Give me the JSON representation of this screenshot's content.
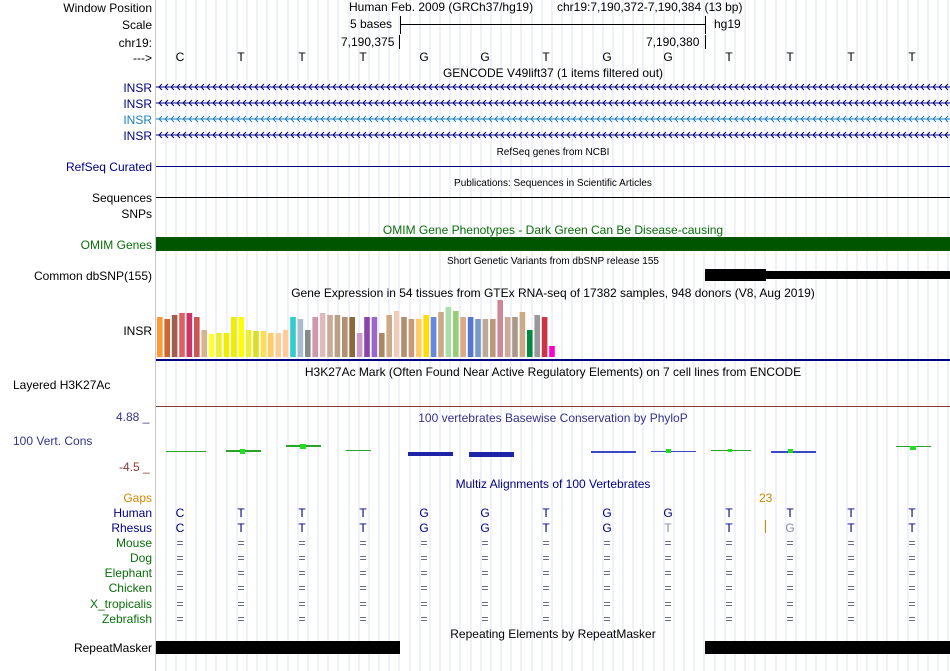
{
  "header": {
    "window_position_label": "Window Position",
    "scale_label": "Scale",
    "chrom_label": "chr19:",
    "arrow_label": "--->",
    "assembly": "Human Feb. 2009 (GRCh37/hg19)",
    "position": "chr19:7,190,372-7,190,384 (13 bp)",
    "scale_text": "5 bases",
    "scale_db": "hg19",
    "coord1": "7,190,375",
    "coord2": "7,190,380"
  },
  "bases": [
    "C",
    "T",
    "T",
    "T",
    "G",
    "G",
    "T",
    "G",
    "G",
    "T",
    "T",
    "T",
    "T"
  ],
  "tracks": {
    "gencode_title": "GENCODE V49lift37 (1 items filtered out)",
    "insr": [
      "INSR",
      "INSR",
      "INSR",
      "INSR"
    ],
    "refseq_label": "RefSeq Curated",
    "refseq_title": "RefSeq genes from NCBI",
    "pubs_title": "Publications: Sequences in Scientific Articles",
    "sequences_label": "Sequences",
    "snps_label": "SNPs",
    "omim_title": "OMIM Gene Phenotypes - Dark Green Can Be Disease-causing",
    "omim_label": "OMIM Genes",
    "dbsnp_title": "Short Genetic Variants from dbSNP release 155",
    "dbsnp_label": "Common dbSNP(155)",
    "gtex_title": "Gene Expression in 54 tissues from GTEx RNA-seq of 17382 samples, 948 donors (V8, Aug 2019)",
    "gtex_label": "INSR",
    "h3k_title": "H3K27Ac Mark (Often Found Near Active Regulatory Elements) on 7 cell lines from ENCODE",
    "h3k_label": "Layered H3K27Ac",
    "cons_title": "100 vertebrates Basewise Conservation by PhyloP",
    "cons_label": "100 Vert. Cons",
    "cons_max": "4.88 _",
    "cons_min": "-4.5 _",
    "multiz_title": "Multiz Alignments of 100 Vertebrates",
    "gaps_label": "Gaps",
    "gap_count": "23",
    "rmsk_title": "Repeating Elements by RepeatMasker",
    "rmsk_label": "RepeatMasker"
  },
  "species": [
    {
      "name": "Human",
      "row": [
        "C",
        "T",
        "T",
        "T",
        "G",
        "G",
        "T",
        "G",
        "G",
        "T",
        "T",
        "T",
        "T"
      ]
    },
    {
      "name": "Rhesus",
      "row": [
        "C",
        "T",
        "T",
        "T",
        "G",
        "G",
        "T",
        "G",
        "T",
        "T",
        "G",
        "T",
        "T"
      ]
    },
    {
      "name": "Mouse",
      "row": [
        "=",
        "=",
        "=",
        "=",
        "=",
        "=",
        "=",
        "=",
        "=",
        "=",
        "=",
        "=",
        "="
      ]
    },
    {
      "name": "Dog",
      "row": [
        "=",
        "=",
        "=",
        "=",
        "=",
        "=",
        "=",
        "=",
        "=",
        "=",
        "=",
        "=",
        "="
      ]
    },
    {
      "name": "Elephant",
      "row": [
        "=",
        "=",
        "=",
        "=",
        "=",
        "=",
        "=",
        "=",
        "=",
        "=",
        "=",
        "=",
        "="
      ]
    },
    {
      "name": "Chicken",
      "row": [
        "=",
        "=",
        "=",
        "=",
        "=",
        "=",
        "=",
        "=",
        "=",
        "=",
        "=",
        "=",
        "="
      ]
    },
    {
      "name": "X_tropicalis",
      "row": [
        "=",
        "=",
        "=",
        "=",
        "=",
        "=",
        "=",
        "=",
        "=",
        "=",
        "=",
        "=",
        "="
      ]
    },
    {
      "name": "Zebrafish",
      "row": [
        "=",
        "=",
        "=",
        "=",
        "=",
        "=",
        "=",
        "=",
        "=",
        "=",
        "=",
        "=",
        "="
      ]
    }
  ],
  "gtex_values": [
    0.4,
    0.38,
    0.42,
    0.44,
    0.44,
    0.4,
    0.27,
    0.23,
    0.24,
    0.24,
    0.4,
    0.4,
    0.27,
    0.26,
    0.26,
    0.24,
    0.24,
    0.27,
    0.4,
    0.38,
    0.27,
    0.4,
    0.44,
    0.42,
    0.42,
    0.4,
    0.4,
    0.24,
    0.4,
    0.4,
    0.24,
    0.42,
    0.46,
    0.4,
    0.38,
    0.38,
    0.42,
    0.4,
    0.45,
    0.5,
    0.46,
    0.4,
    0.4,
    0.38,
    0.38,
    0.38,
    0.57,
    0.4,
    0.4,
    0.45,
    0.27,
    0.42,
    0.4,
    0.11
  ],
  "gtex_colors": [
    "#ff9933",
    "#cc6633",
    "#a06050",
    "#e06060",
    "#cc3366",
    "#cc5555",
    "#d9b38c",
    "#ffff33",
    "#eeee33",
    "#eeee00",
    "#eeee00",
    "#ffff00",
    "#eeee33",
    "#dddd22",
    "#ffdd55",
    "#ffcc66",
    "#ffcc99",
    "#ffcc99",
    "#33cccc",
    "#aabbcc",
    "#888888",
    "#cc99aa",
    "#ddbbbb",
    "#ccaa99",
    "#bba088",
    "#b09070",
    "#8b6a3a",
    "#cc99cc",
    "#8844aa",
    "#9966cc",
    "#aa8866",
    "#ccaa88",
    "#eeccbb",
    "#b09070",
    "#cc9977",
    "#ffcc66",
    "#ffdd00",
    "#6688dd",
    "#ccaa88",
    "#aaddaa",
    "#99cc77",
    "#ddaa88",
    "#5577cc",
    "#7799cc",
    "#bbaa99",
    "#bb9977",
    "#cc8899",
    "#ccaa99",
    "#aa9988",
    "#ccaa88",
    "#008844",
    "#999999",
    "#cc3344",
    "#ff00cc"
  ]
}
